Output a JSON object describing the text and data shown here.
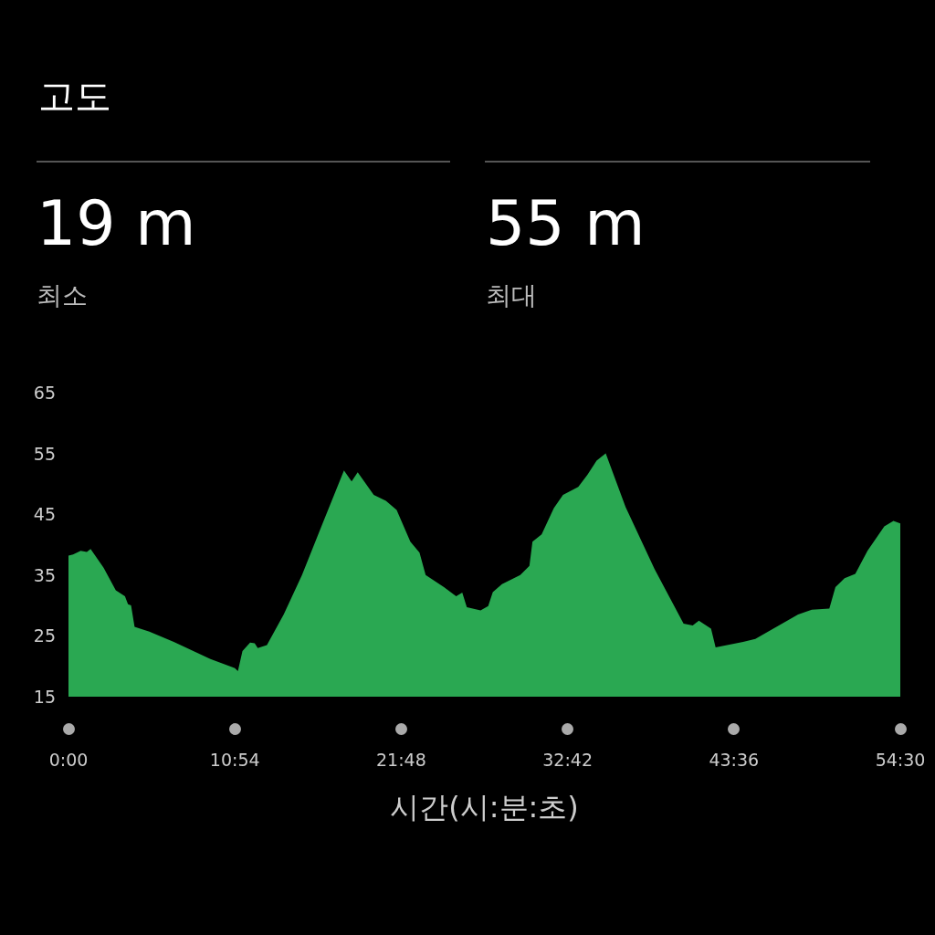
{
  "chart_data": {
    "type": "area",
    "title": "고도",
    "annotations": [
      "19 m",
      "최소",
      "55 m",
      "최대"
    ],
    "xlabel": "시간(시:분:초)",
    "x": [
      0,
      0.3,
      0.8,
      1.2,
      1.45,
      2.3,
      3.1,
      3.7,
      3.9,
      4.1,
      4.33,
      5.3,
      6.9,
      9.3,
      10.9,
      11.1,
      11.4,
      11.9,
      12.2,
      12.4,
      13.0,
      14.1,
      15.3,
      16.65,
      18.05,
      18.55,
      18.95,
      20.0,
      20.8,
      21.5,
      22.4,
      23.0,
      23.4,
      24.6,
      25.4,
      25.8,
      26.1,
      27.0,
      27.5,
      27.8,
      28.4,
      29.6,
      30.2,
      30.4,
      31.0,
      31.8,
      32.4,
      33.4,
      34.0,
      34.6,
      35.2,
      36.5,
      38.4,
      40.3,
      40.9,
      41.3,
      42.1,
      42.4,
      44.2,
      45.0,
      47.8,
      48.7,
      49.85,
      50.25,
      50.85,
      51.55,
      52.35,
      53.45,
      54.05,
      54.5
    ],
    "values": [
      38.2,
      38.4,
      39.0,
      38.8,
      39.3,
      36.2,
      32.5,
      31.5,
      30.2,
      30.0,
      26.5,
      25.7,
      24.0,
      21.2,
      19.7,
      19.2,
      22.5,
      23.9,
      23.8,
      23.0,
      23.5,
      28.5,
      35.0,
      43.5,
      52.2,
      50.4,
      51.9,
      48.2,
      47.2,
      45.7,
      40.5,
      38.7,
      35.0,
      33.0,
      31.5,
      32.1,
      29.7,
      29.2,
      29.9,
      32.2,
      33.5,
      35.0,
      36.5,
      40.5,
      41.7,
      46.0,
      48.2,
      49.5,
      51.5,
      53.8,
      55.0,
      46.2,
      36.0,
      27.0,
      26.7,
      27.5,
      26.2,
      23.1,
      24.0,
      24.5,
      28.5,
      29.3,
      29.5,
      33.0,
      34.5,
      35.2,
      39.0,
      43.0,
      43.9,
      43.5
    ],
    "color": "#2aa852",
    "xlim": [
      0,
      54.5
    ],
    "xticks": [
      {
        "value": 0,
        "label": "0:00"
      },
      {
        "value": 10.9,
        "label": "10:54"
      },
      {
        "value": 21.8,
        "label": "21:48"
      },
      {
        "value": 32.7,
        "label": "32:42"
      },
      {
        "value": 43.6,
        "label": "43:36"
      },
      {
        "value": 54.5,
        "label": "54:30"
      }
    ],
    "ylim": [
      15,
      65
    ],
    "yticks": [
      15,
      25,
      35,
      45,
      55,
      65
    ]
  }
}
